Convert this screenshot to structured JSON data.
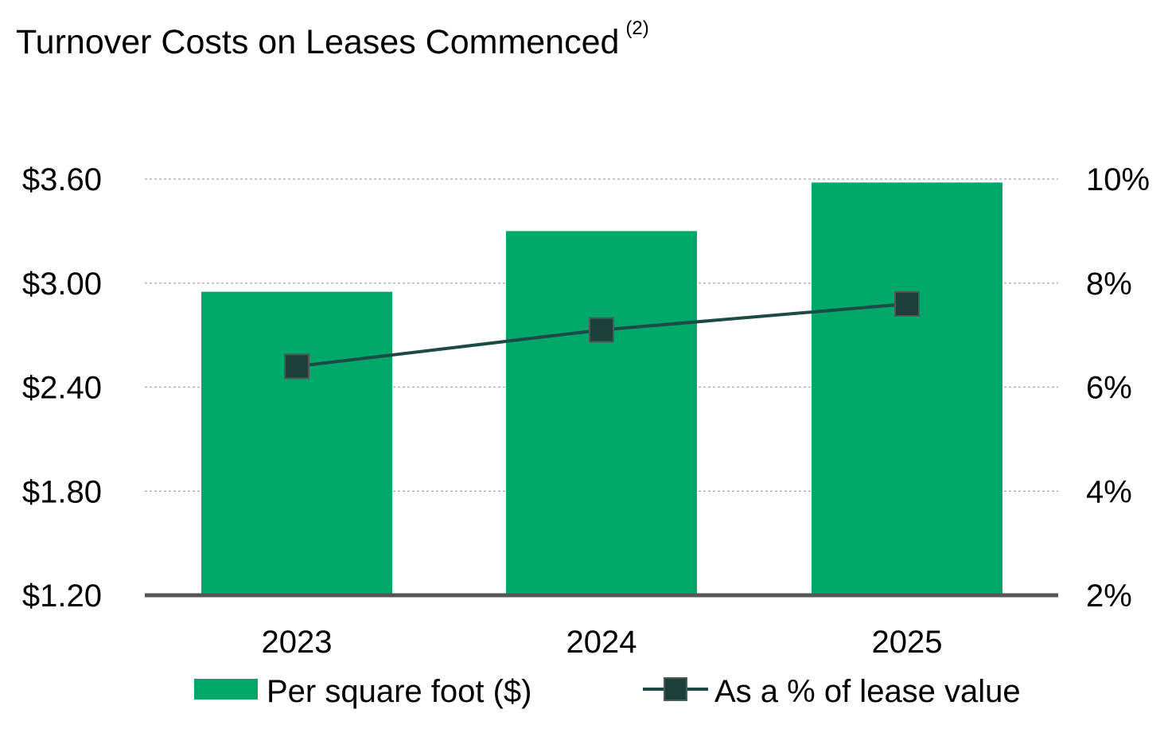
{
  "title": "Turnover Costs on Leases Commenced",
  "title_footnote": "(2)",
  "colors": {
    "bar": "#00A76A",
    "line": "#1C4A45",
    "marker_fill": "#1C3F3C",
    "marker_stroke": "#4A5A58",
    "grid": "#B3B3B3",
    "baseline": "#555555"
  },
  "chart_data": {
    "type": "bar",
    "title": "Turnover Costs on Leases Commenced",
    "categories": [
      "2023",
      "2024",
      "2025"
    ],
    "series": [
      {
        "name": "Per square foot ($)",
        "type": "bar",
        "axis": "left",
        "values": [
          2.95,
          3.3,
          3.58
        ]
      },
      {
        "name": "As a % of lease value",
        "type": "line",
        "axis": "right",
        "marker": "square",
        "values": [
          6.4,
          7.1,
          7.6
        ]
      }
    ],
    "y_left": {
      "ylim": [
        1.2,
        3.6
      ],
      "ticks": [
        1.2,
        1.8,
        2.4,
        3.0,
        3.6
      ],
      "tick_labels": [
        "$1.20",
        "$1.80",
        "$2.40",
        "$3.00",
        "$3.60"
      ]
    },
    "y_right": {
      "ylim": [
        2,
        10
      ],
      "ticks": [
        2,
        4,
        6,
        8,
        10
      ],
      "tick_labels": [
        "2%",
        "4%",
        "6%",
        "8%",
        "10%"
      ]
    },
    "grid": true,
    "legend_position": "bottom"
  }
}
